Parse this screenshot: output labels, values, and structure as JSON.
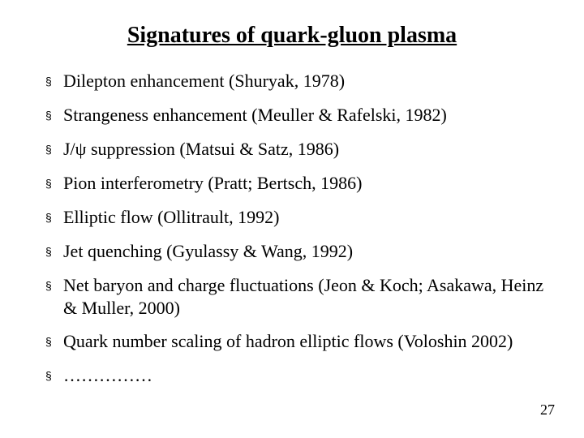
{
  "title": "Signatures of quark-gluon plasma",
  "items": [
    "Dilepton enhancement (Shuryak, 1978)",
    "Strangeness enhancement (Meuller & Rafelski, 1982)",
    "J/ψ suppression (Matsui & Satz, 1986)",
    "Pion interferometry (Pratt; Bertsch, 1986)",
    "Elliptic flow (Ollitrault, 1992)",
    "Jet quenching (Gyulassy & Wang, 1992)",
    "Net baryon and charge fluctuations (Jeon & Koch; Asakawa, Heinz & Muller, 2000)",
    "Quark number scaling of hadron elliptic flows (Voloshin 2002)",
    "……………"
  ],
  "page_number": "27",
  "bullet_glyph": "§"
}
